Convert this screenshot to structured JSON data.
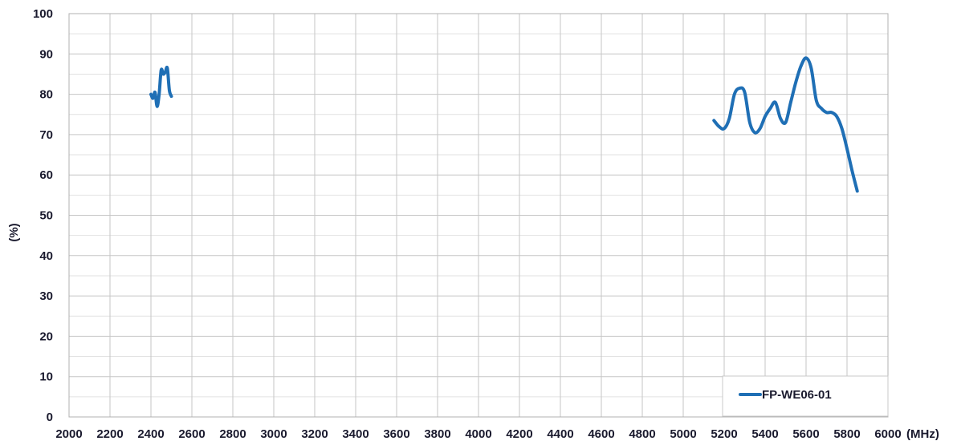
{
  "chart_data": {
    "type": "line",
    "xlabel": "(MHz)",
    "ylabel": "(%)",
    "xlim": [
      2000,
      6000
    ],
    "ylim": [
      0,
      100
    ],
    "x_ticks": [
      2000,
      2200,
      2400,
      2600,
      2800,
      3000,
      3200,
      3400,
      3600,
      3800,
      4000,
      4200,
      4400,
      4600,
      4800,
      5000,
      5200,
      5400,
      5600,
      5800,
      6000
    ],
    "y_ticks": [
      0,
      10,
      20,
      30,
      40,
      50,
      60,
      70,
      80,
      90,
      100
    ],
    "grid": true,
    "legend_position": "bottom-right",
    "series": [
      {
        "name": "FP-WE06-01",
        "color": "#1f6fb5",
        "segments": [
          {
            "x": [
              2400,
              2410,
              2420,
              2430,
              2440,
              2450,
              2460,
              2470,
              2480,
              2490,
              2500
            ],
            "y": [
              80,
              79,
              80.5,
              77,
              80,
              86,
              85,
              85.5,
              86.5,
              81,
              79.5
            ]
          },
          {
            "x": [
              5150,
              5175,
              5200,
              5225,
              5250,
              5275,
              5300,
              5325,
              5350,
              5375,
              5400,
              5425,
              5450,
              5475,
              5500,
              5525,
              5550,
              5575,
              5600,
              5625,
              5650,
              5675,
              5700,
              5725,
              5750,
              5775,
              5800,
              5825,
              5850
            ],
            "y": [
              73.5,
              72,
              71.5,
              74,
              80,
              81.5,
              80.5,
              73,
              70.5,
              71.5,
              74.5,
              76.5,
              78,
              74,
              73,
              78,
              83,
              87,
              89,
              86.5,
              78.5,
              76.5,
              75.5,
              75.5,
              74.5,
              71.5,
              66.5,
              61,
              56
            ]
          }
        ]
      }
    ]
  }
}
